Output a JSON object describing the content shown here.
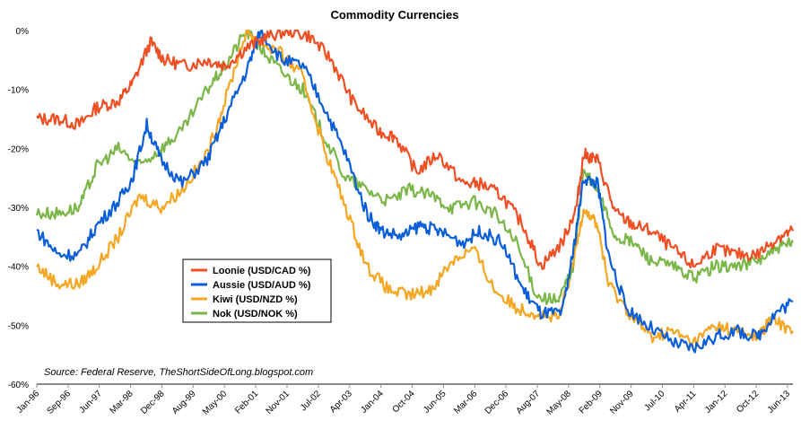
{
  "chart_data": {
    "type": "line",
    "title": "Commodity Currencies",
    "source_note": "Source: Federal Reserve, TheShortSideOfLong.blogspot.com",
    "ylim": [
      -60,
      0
    ],
    "y_ticks": [
      0,
      -10,
      -20,
      -30,
      -40,
      -50,
      -60
    ],
    "y_tick_labels": [
      "0%",
      "-10%",
      "-20%",
      "-30%",
      "-40%",
      "-50%",
      "-60%"
    ],
    "x_range": [
      "Jan-96",
      "Oct-13"
    ],
    "x_tick_labels": [
      "Jan-96",
      "Sep-96",
      "Jun-97",
      "Mar-98",
      "Dec-98",
      "Aug-99",
      "May-00",
      "Feb-01",
      "Nov-01",
      "Jul-02",
      "Apr-03",
      "Jan-04",
      "Oct-04",
      "Jun-05",
      "Mar-06",
      "Dec-06",
      "Aug-07",
      "May-08",
      "Feb-09",
      "Nov-09",
      "Jul-10",
      "Apr-11",
      "Jan-12",
      "Oct-12",
      "Jun-13"
    ],
    "grid": false,
    "legend_position": "lower-left",
    "series": [
      {
        "name": "Loonie (USD/CAD %)",
        "color": "#f04e23",
        "points": [
          [
            "1996-01-01",
            -15
          ],
          [
            "1996-07-01",
            -15
          ],
          [
            "1997-01-01",
            -16
          ],
          [
            "1997-06-01",
            -13
          ],
          [
            "1997-12-01",
            -12
          ],
          [
            "1998-04-01",
            -9
          ],
          [
            "1998-09-01",
            -2
          ],
          [
            "1999-01-01",
            -5
          ],
          [
            "1999-07-01",
            -6
          ],
          [
            "2000-01-01",
            -5
          ],
          [
            "2000-06-01",
            -6
          ],
          [
            "2000-12-01",
            -3
          ],
          [
            "2001-06-01",
            -1
          ],
          [
            "2001-12-01",
            0
          ],
          [
            "2002-06-01",
            -1
          ],
          [
            "2002-12-01",
            -5
          ],
          [
            "2003-06-01",
            -12
          ],
          [
            "2004-01-01",
            -17
          ],
          [
            "2004-06-01",
            -18
          ],
          [
            "2004-12-01",
            -24
          ],
          [
            "2005-06-01",
            -21
          ],
          [
            "2006-01-01",
            -26
          ],
          [
            "2006-06-01",
            -26
          ],
          [
            "2006-12-01",
            -28
          ],
          [
            "2007-06-01",
            -33
          ],
          [
            "2007-11-01",
            -40
          ],
          [
            "2008-05-01",
            -36
          ],
          [
            "2008-09-01",
            -30
          ],
          [
            "2008-11-01",
            -21
          ],
          [
            "2009-03-01",
            -22
          ],
          [
            "2009-08-01",
            -31
          ],
          [
            "2010-01-01",
            -33
          ],
          [
            "2010-06-01",
            -34
          ],
          [
            "2010-12-01",
            -37
          ],
          [
            "2011-06-01",
            -40
          ],
          [
            "2011-12-01",
            -37
          ],
          [
            "2012-06-01",
            -38
          ],
          [
            "2012-12-01",
            -38
          ],
          [
            "2013-06-01",
            -35
          ],
          [
            "2013-10-01",
            -34
          ]
        ]
      },
      {
        "name": "Aussie (USD/AUD %)",
        "color": "#0b5ed7",
        "points": [
          [
            "1996-01-01",
            -34
          ],
          [
            "1996-07-01",
            -38
          ],
          [
            "1997-01-01",
            -38
          ],
          [
            "1997-06-01",
            -33
          ],
          [
            "1997-12-01",
            -29
          ],
          [
            "1998-04-01",
            -25
          ],
          [
            "1998-08-01",
            -16
          ],
          [
            "1998-12-01",
            -22
          ],
          [
            "1999-06-01",
            -26
          ],
          [
            "2000-01-01",
            -22
          ],
          [
            "2000-06-01",
            -15
          ],
          [
            "2000-12-01",
            -7
          ],
          [
            "2001-04-01",
            0
          ],
          [
            "2001-10-01",
            -5
          ],
          [
            "2002-04-01",
            -6
          ],
          [
            "2002-10-01",
            -13
          ],
          [
            "2003-04-01",
            -21
          ],
          [
            "2003-10-01",
            -31
          ],
          [
            "2004-02-01",
            -34
          ],
          [
            "2004-08-01",
            -35
          ],
          [
            "2005-01-01",
            -33
          ],
          [
            "2005-06-01",
            -34
          ],
          [
            "2006-01-01",
            -36
          ],
          [
            "2006-06-01",
            -34
          ],
          [
            "2006-12-01",
            -36
          ],
          [
            "2007-06-01",
            -44
          ],
          [
            "2007-11-01",
            -48
          ],
          [
            "2008-05-01",
            -48
          ],
          [
            "2008-08-01",
            -38
          ],
          [
            "2008-11-01",
            -25
          ],
          [
            "2009-03-01",
            -26
          ],
          [
            "2009-06-01",
            -38
          ],
          [
            "2009-11-01",
            -47
          ],
          [
            "2010-05-01",
            -50
          ],
          [
            "2010-12-01",
            -53
          ],
          [
            "2011-06-01",
            -54
          ],
          [
            "2011-12-01",
            -52
          ],
          [
            "2012-06-01",
            -51
          ],
          [
            "2012-12-01",
            -52
          ],
          [
            "2013-05-01",
            -48
          ],
          [
            "2013-10-01",
            -46
          ]
        ]
      },
      {
        "name": "Kiwi (USD/NZD %)",
        "color": "#f5a623",
        "points": [
          [
            "1996-01-01",
            -40
          ],
          [
            "1996-07-01",
            -43
          ],
          [
            "1997-01-01",
            -43
          ],
          [
            "1997-06-01",
            -40
          ],
          [
            "1997-12-01",
            -35
          ],
          [
            "1998-06-01",
            -28
          ],
          [
            "1998-12-01",
            -30
          ],
          [
            "1999-06-01",
            -27
          ],
          [
            "2000-01-01",
            -21
          ],
          [
            "2000-06-01",
            -12
          ],
          [
            "2000-12-01",
            0
          ],
          [
            "2001-04-01",
            -2
          ],
          [
            "2001-10-01",
            -4
          ],
          [
            "2002-04-01",
            -8
          ],
          [
            "2002-10-01",
            -20
          ],
          [
            "2003-04-01",
            -30
          ],
          [
            "2003-10-01",
            -40
          ],
          [
            "2004-04-01",
            -44
          ],
          [
            "2004-10-01",
            -45
          ],
          [
            "2005-04-01",
            -44
          ],
          [
            "2005-10-01",
            -39
          ],
          [
            "2006-04-01",
            -37
          ],
          [
            "2006-10-01",
            -44
          ],
          [
            "2007-04-01",
            -47
          ],
          [
            "2007-10-01",
            -48
          ],
          [
            "2008-04-01",
            -49
          ],
          [
            "2008-08-01",
            -40
          ],
          [
            "2008-11-01",
            -30
          ],
          [
            "2009-03-01",
            -33
          ],
          [
            "2009-06-01",
            -43
          ],
          [
            "2009-12-01",
            -48
          ],
          [
            "2010-06-01",
            -52
          ],
          [
            "2010-12-01",
            -51
          ],
          [
            "2011-06-01",
            -53
          ],
          [
            "2011-12-01",
            -50
          ],
          [
            "2012-06-01",
            -51
          ],
          [
            "2012-12-01",
            -52
          ],
          [
            "2013-04-01",
            -49
          ],
          [
            "2013-10-01",
            -51
          ]
        ]
      },
      {
        "name": "Nok (USD/NOK %)",
        "color": "#7ab648",
        "points": [
          [
            "1996-01-01",
            -31
          ],
          [
            "1996-07-01",
            -31
          ],
          [
            "1997-01-01",
            -30
          ],
          [
            "1997-06-01",
            -23
          ],
          [
            "1997-12-01",
            -20
          ],
          [
            "1998-06-01",
            -23
          ],
          [
            "1998-12-01",
            -20
          ],
          [
            "1999-06-01",
            -17
          ],
          [
            "2000-01-01",
            -10
          ],
          [
            "2000-06-01",
            -6
          ],
          [
            "2000-12-01",
            0
          ],
          [
            "2001-04-01",
            -3
          ],
          [
            "2001-10-01",
            -7
          ],
          [
            "2002-04-01",
            -10
          ],
          [
            "2002-10-01",
            -18
          ],
          [
            "2003-04-01",
            -25
          ],
          [
            "2003-10-01",
            -27
          ],
          [
            "2004-04-01",
            -29
          ],
          [
            "2004-10-01",
            -27
          ],
          [
            "2005-04-01",
            -28
          ],
          [
            "2005-10-01",
            -30
          ],
          [
            "2006-04-01",
            -29
          ],
          [
            "2006-10-01",
            -31
          ],
          [
            "2007-04-01",
            -36
          ],
          [
            "2007-10-01",
            -45
          ],
          [
            "2008-04-01",
            -46
          ],
          [
            "2008-08-01",
            -40
          ],
          [
            "2008-11-01",
            -24
          ],
          [
            "2009-03-01",
            -27
          ],
          [
            "2009-08-01",
            -35
          ],
          [
            "2010-01-01",
            -36
          ],
          [
            "2010-06-01",
            -39
          ],
          [
            "2010-12-01",
            -40
          ],
          [
            "2011-06-01",
            -42
          ],
          [
            "2011-12-01",
            -40
          ],
          [
            "2012-06-01",
            -40
          ],
          [
            "2012-12-01",
            -39
          ],
          [
            "2013-06-01",
            -37
          ],
          [
            "2013-10-01",
            -36
          ]
        ]
      }
    ]
  }
}
